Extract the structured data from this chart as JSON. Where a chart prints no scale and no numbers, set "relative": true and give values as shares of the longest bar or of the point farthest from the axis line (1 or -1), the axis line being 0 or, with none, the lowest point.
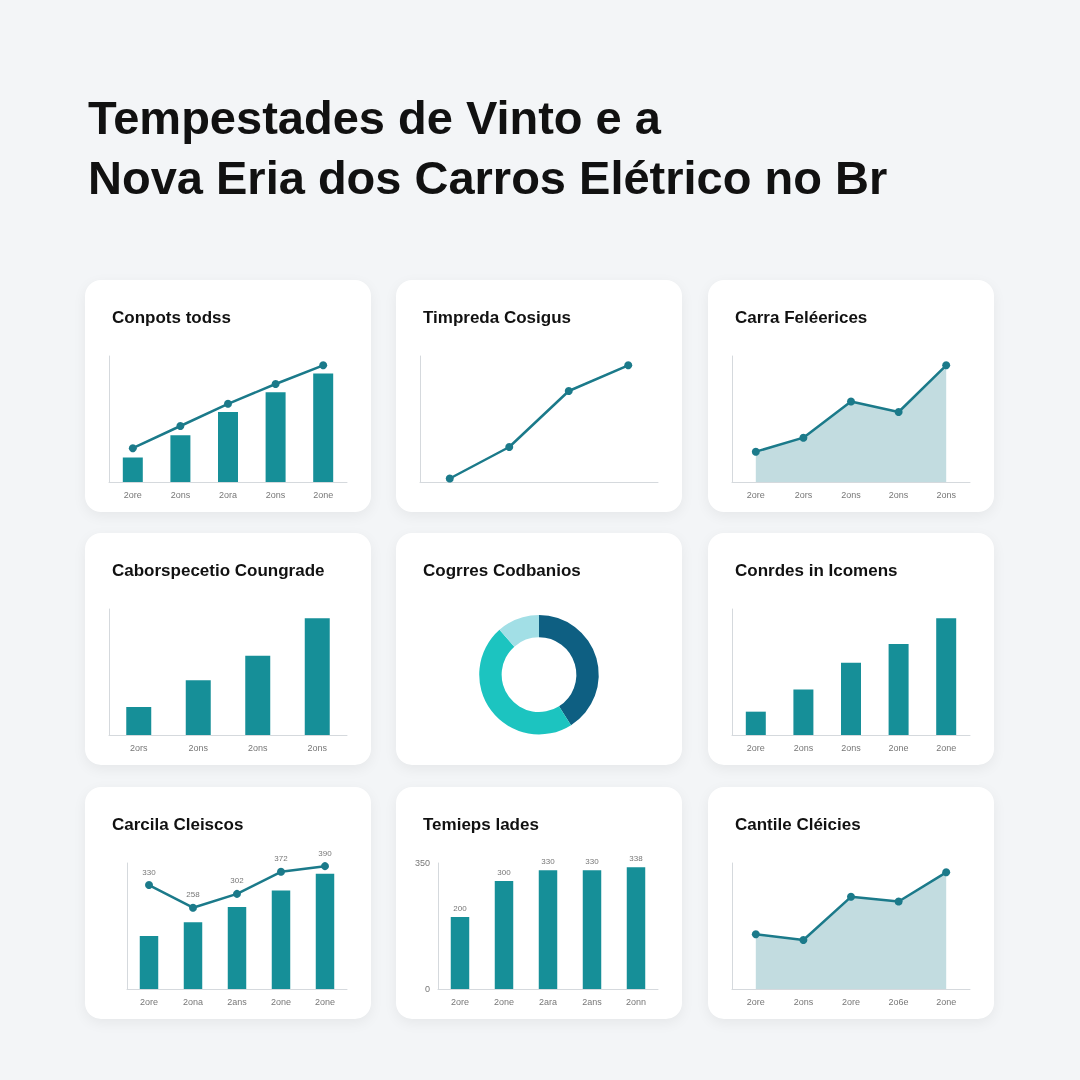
{
  "chart_data": [
    {
      "type": "other",
      "title": "Tempestades de Vinto e a\nNova Eria dos Carros Elétrico no Br"
    },
    {
      "type": "bar",
      "title": "Conpots todss",
      "categories": [
        "2ore",
        "2ons",
        "2ora",
        "2ons",
        "2one"
      ],
      "relative": true,
      "marker": "circle",
      "series": [
        {
          "type": "bar",
          "color": "#168f98",
          "values": [
            0.21,
            0.4,
            0.6,
            0.77,
            0.93
          ]
        },
        {
          "type": "line",
          "color": "#1b7a8a",
          "values": [
            0.29,
            0.48,
            0.67,
            0.84,
            1
          ]
        }
      ]
    },
    {
      "type": "line",
      "title": "Timpreda Cosigus",
      "categories": [
        null,
        null,
        null,
        null
      ],
      "relative": true,
      "marker": "circle",
      "series": [
        {
          "color": "#1b7a8a",
          "values": [
            0.03,
            0.3,
            0.78,
            1
          ]
        }
      ]
    },
    {
      "type": "area",
      "title": "Carra Feléerices",
      "categories": [
        "2ore",
        "2ors",
        "2ons",
        "2ons",
        "2ons"
      ],
      "relative": true,
      "marker": "circle",
      "series": [
        {
          "color": "#1b7a8a",
          "values": [
            0.26,
            0.38,
            0.69,
            0.6,
            1
          ]
        }
      ]
    },
    {
      "type": "bar",
      "title": "Caborspecetio Coungrade",
      "categories": [
        "2ors",
        "2ons",
        "2ons",
        "2ons"
      ],
      "relative": true,
      "series": [
        {
          "color": "#168f98",
          "values": [
            0.24,
            0.47,
            0.68,
            1
          ]
        }
      ]
    },
    {
      "type": "donut",
      "title": "Cogrres Codbanios",
      "categories": [
        null,
        null,
        null
      ],
      "values": [
        41,
        47.5,
        11.5
      ],
      "colors": [
        "#0e5f82",
        "#1cc4c0",
        "#a2dfe6"
      ]
    },
    {
      "type": "bar",
      "title": "Conrdes in Icomens",
      "categories": [
        "2ore",
        "2ons",
        "2ons",
        "2one",
        "2one"
      ],
      "relative": true,
      "series": [
        {
          "color": "#168f98",
          "values": [
            0.2,
            0.39,
            0.62,
            0.78,
            1
          ]
        }
      ]
    },
    {
      "type": "bar",
      "title": "Carcila Cleiscos",
      "categories": [
        "2ore",
        "2ona",
        "2ans",
        "2one",
        "2one"
      ],
      "ylim": [
        0,
        400
      ],
      "tick_labels": "x",
      "marker": "circle",
      "series": [
        {
          "type": "bar",
          "color": "#168f98",
          "values": [
            168,
            212,
            260,
            313,
            366
          ]
        },
        {
          "type": "line",
          "color": "#1b7a8a",
          "values": [
            330,
            258,
            302,
            372,
            390
          ],
          "value_labels": [
            "330",
            "258",
            "302",
            "372",
            "390"
          ]
        }
      ]
    },
    {
      "type": "bar",
      "title": "Temieps lades",
      "categories": [
        "2ore",
        "2one",
        "2ara",
        "2ans",
        "2onn"
      ],
      "ylim": [
        0,
        350
      ],
      "yticks": [
        0,
        350
      ],
      "data_labels": true,
      "series": [
        {
          "color": "#168f98",
          "values": [
            200,
            300,
            330,
            330,
            338
          ]
        }
      ]
    },
    {
      "type": "area",
      "title": "Cantile Cléicies",
      "categories": [
        "2ore",
        "2ons",
        "2ore",
        "2o6e",
        "2one"
      ],
      "relative": true,
      "marker": "circle",
      "series": [
        {
          "color": "#1b7a8a",
          "values": [
            0.47,
            0.42,
            0.79,
            0.75,
            1
          ]
        }
      ]
    }
  ]
}
